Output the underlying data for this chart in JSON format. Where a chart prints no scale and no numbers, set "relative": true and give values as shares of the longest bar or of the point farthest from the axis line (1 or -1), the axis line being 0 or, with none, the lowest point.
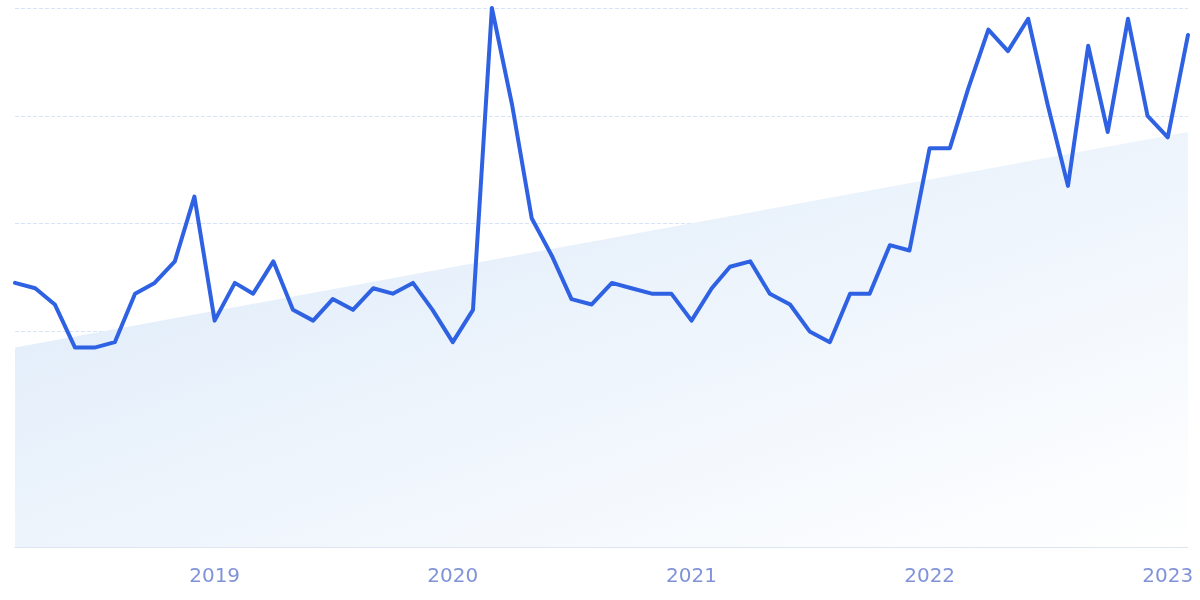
{
  "chart_data": {
    "type": "line",
    "relative": true,
    "grid": "y",
    "marker": "none",
    "line_style": "solid",
    "x": [
      "2018-03",
      "2018-04",
      "2018-05",
      "2018-06",
      "2018-07",
      "2018-08",
      "2018-09",
      "2018-10",
      "2018-11",
      "2018-12",
      "2019-01",
      "2019-02",
      "2019-03",
      "2019-04",
      "2019-05",
      "2019-06",
      "2019-07",
      "2019-08",
      "2019-09",
      "2019-10",
      "2019-11",
      "2019-12",
      "2020-01",
      "2020-02",
      "2020-03",
      "2020-04",
      "2020-05",
      "2020-06",
      "2020-07",
      "2020-08",
      "2020-09",
      "2020-10",
      "2020-11",
      "2020-12",
      "2021-01",
      "2021-02",
      "2021-03",
      "2021-04",
      "2021-05",
      "2021-06",
      "2021-07",
      "2021-08",
      "2021-09",
      "2021-10",
      "2021-11",
      "2021-12",
      "2022-01",
      "2022-02",
      "2022-03",
      "2022-04",
      "2022-05",
      "2022-06",
      "2022-07",
      "2022-08",
      "2022-09",
      "2022-10",
      "2022-11",
      "2022-12",
      "2023-01",
      "2023-02"
    ],
    "xlim": [
      "2018-03",
      "2023-02"
    ],
    "xticks": [
      "2019",
      "2020",
      "2021",
      "2022",
      "2023"
    ],
    "series": [
      {
        "color": "#2f62e3",
        "values": [
          0.49,
          0.48,
          0.45,
          0.37,
          0.37,
          0.38,
          0.47,
          0.49,
          0.53,
          0.65,
          0.42,
          0.49,
          0.47,
          0.53,
          0.44,
          0.42,
          0.46,
          0.44,
          0.48,
          0.47,
          0.49,
          0.44,
          0.38,
          0.44,
          1,
          0.82,
          0.61,
          0.54,
          0.46,
          0.45,
          0.49,
          0.48,
          0.47,
          0.47,
          0.42,
          0.48,
          0.52,
          0.53,
          0.47,
          0.45,
          0.4,
          0.38,
          0.47,
          0.47,
          0.56,
          0.55,
          0.74,
          0.74,
          0.85,
          0.96,
          0.92,
          0.98,
          0.82,
          0.67,
          0.93,
          0.77,
          0.98,
          0.8,
          0.76,
          0.95
        ]
      },
      {
        "type": "area",
        "color": "#dbe9f9",
        "x": [
          "2018-03",
          "2023-02"
        ],
        "values": [
          0.37,
          0.77
        ]
      }
    ]
  }
}
